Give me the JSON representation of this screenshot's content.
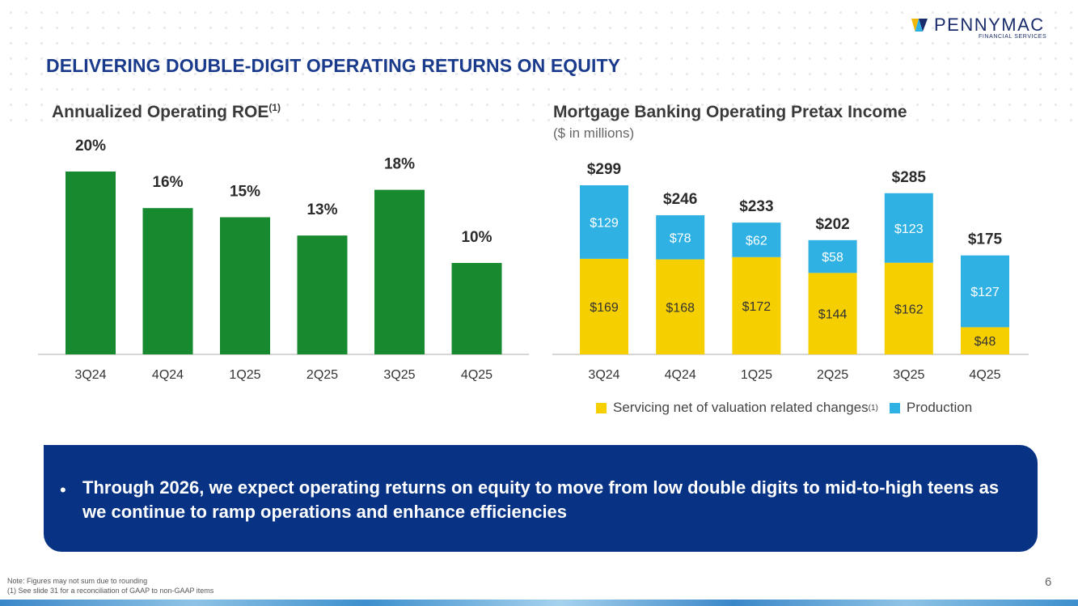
{
  "logo": {
    "name": "PENNYMAC",
    "sub": "FINANCIAL SERVICES",
    "registered": "®"
  },
  "slide": {
    "title": "DELIVERING DOUBLE-DIGIT OPERATING RETURNS ON EQUITY",
    "page_number": "6",
    "footnotes": [
      "Note: Figures may not sum due to rounding",
      "(1) See slide 31 for a reconciliation of GAAP to non-GAAP items"
    ]
  },
  "colors": {
    "title": "#1a3a8c",
    "roe_bar": "#178a2f",
    "servicing": "#f5cf00",
    "production": "#2fb1e3",
    "callout_bg": "#083384"
  },
  "chart_data": [
    {
      "type": "bar",
      "title": "Annualized Operating ROE",
      "title_sup": "(1)",
      "categories": [
        "3Q24",
        "4Q24",
        "1Q25",
        "2Q25",
        "3Q25",
        "4Q25"
      ],
      "values": [
        20,
        16,
        15,
        13,
        18,
        10
      ],
      "value_labels": [
        "20%",
        "16%",
        "15%",
        "13%",
        "18%",
        "10%"
      ],
      "unit": "%",
      "xlabel": "",
      "ylabel": "",
      "ylim": [
        0,
        20
      ],
      "grid": false
    },
    {
      "type": "bar",
      "stacked": true,
      "title": "Mortgage Banking Operating Pretax Income",
      "subtitle": "($ in millions)",
      "categories": [
        "3Q24",
        "4Q24",
        "1Q25",
        "2Q25",
        "3Q25",
        "4Q25"
      ],
      "series": [
        {
          "name": "Servicing net of valuation related changes",
          "name_sup": "(1)",
          "values": [
            169,
            168,
            172,
            144,
            162,
            48
          ],
          "labels": [
            "$169",
            "$168",
            "$172",
            "$144",
            "$162",
            "$48"
          ]
        },
        {
          "name": "Production",
          "values": [
            129,
            78,
            62,
            58,
            123,
            127
          ],
          "labels": [
            "$129",
            "$78",
            "$62",
            "$58",
            "$123",
            "$127"
          ]
        }
      ],
      "totals": [
        299,
        246,
        233,
        202,
        285,
        175
      ],
      "total_labels": [
        "$299",
        "$246",
        "$233",
        "$202",
        "$285",
        "$175"
      ],
      "ylim": [
        0,
        299
      ],
      "legend": "bottom",
      "grid": false
    }
  ],
  "callout": {
    "bullet": "•",
    "text": "Through 2026, we expect operating returns on equity to move from low double digits to mid-to-high teens as we continue to ramp operations and enhance efficiencies"
  }
}
